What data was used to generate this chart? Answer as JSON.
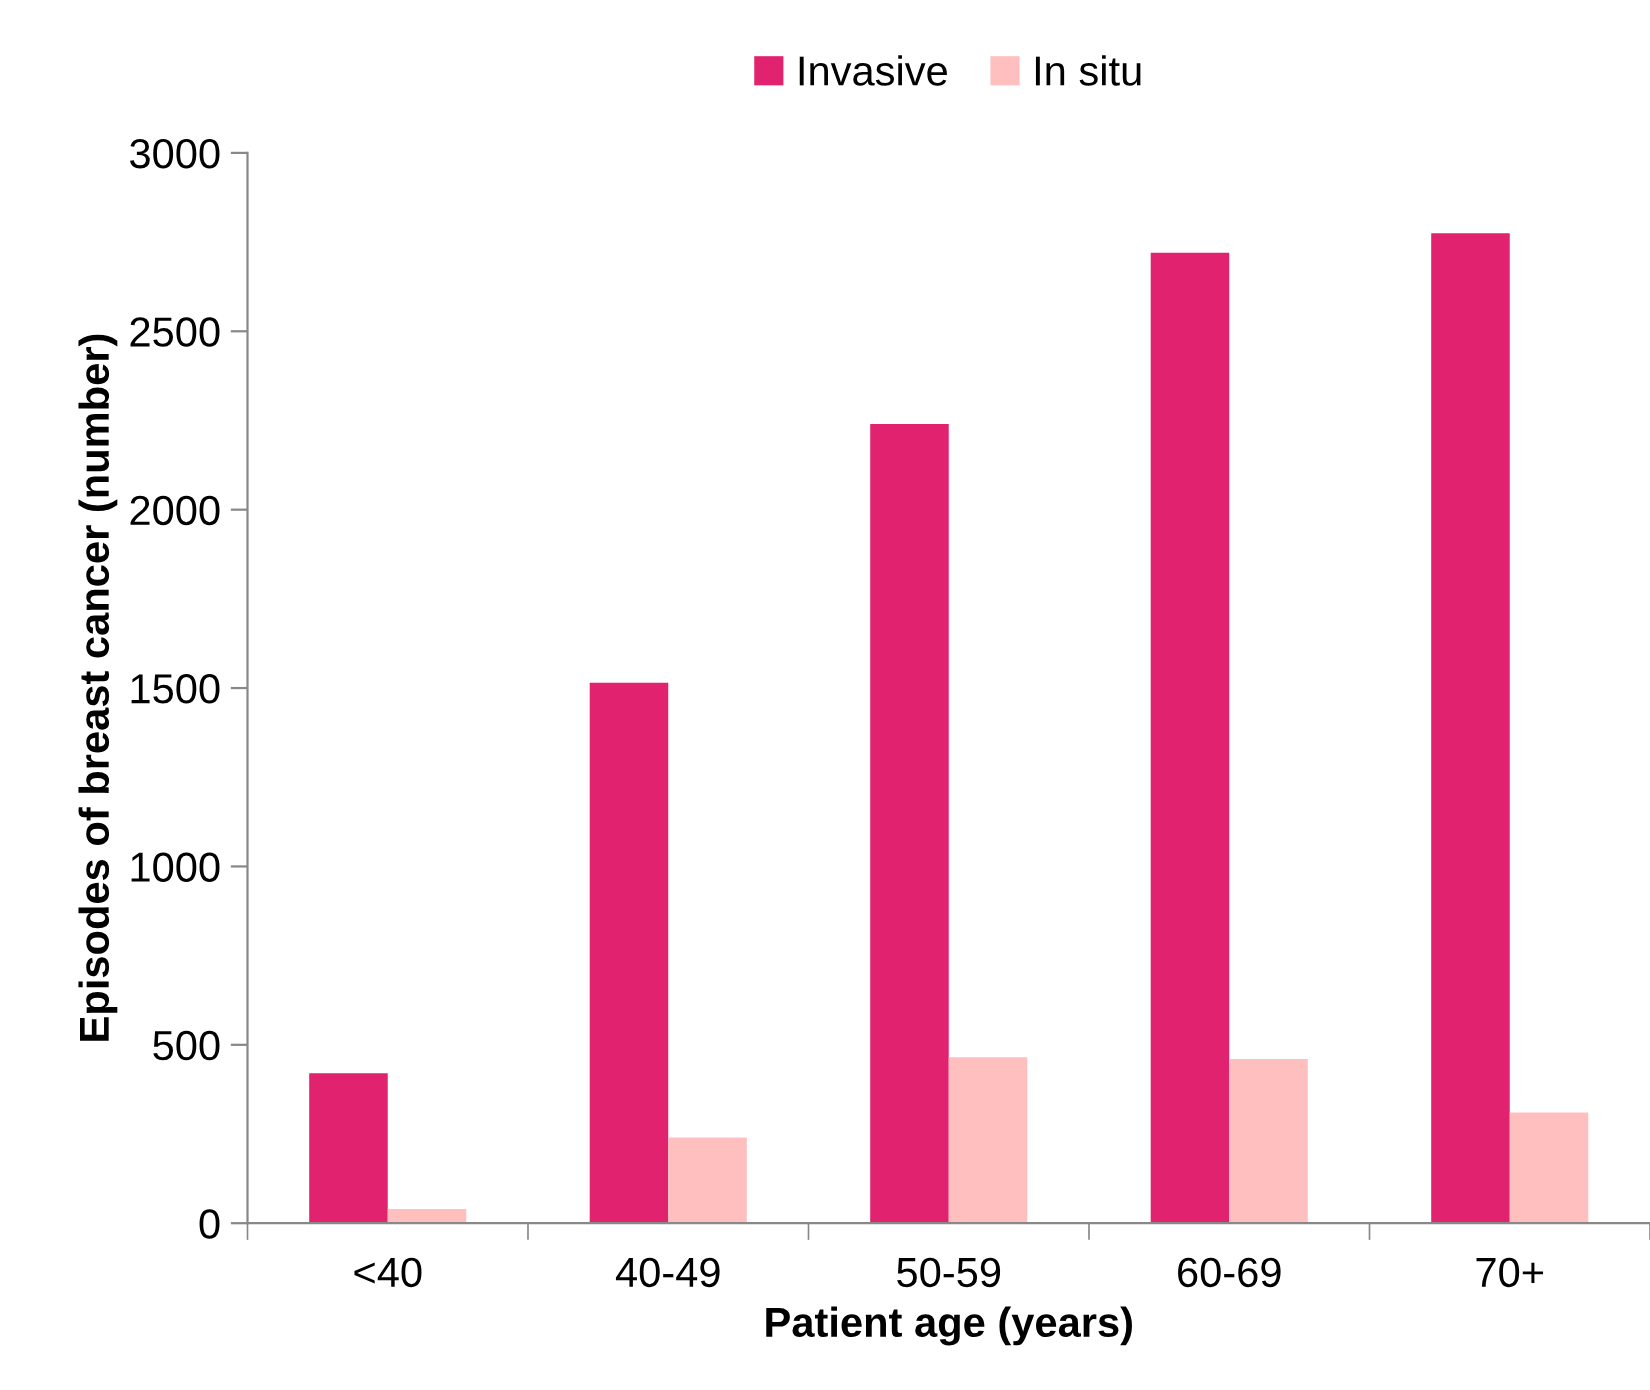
{
  "chart_data": {
    "type": "bar",
    "xlabel": "Patient age (years)",
    "ylabel": "Episodes of breast cancer (number)",
    "categories": [
      "<40",
      "40-49",
      "50-59",
      "60-69",
      "70+"
    ],
    "series": [
      {
        "name": "Invasive",
        "color": "#e0226f",
        "values": [
          420,
          1515,
          2240,
          2720,
          2775
        ]
      },
      {
        "name": "In situ",
        "color": "#ffbfbf",
        "values": [
          40,
          240,
          465,
          460,
          310
        ]
      }
    ],
    "ylim": [
      0,
      3000
    ],
    "yticks": [
      0,
      500,
      1000,
      1500,
      2000,
      2500,
      3000
    ],
    "grid": false,
    "legend": "top"
  }
}
